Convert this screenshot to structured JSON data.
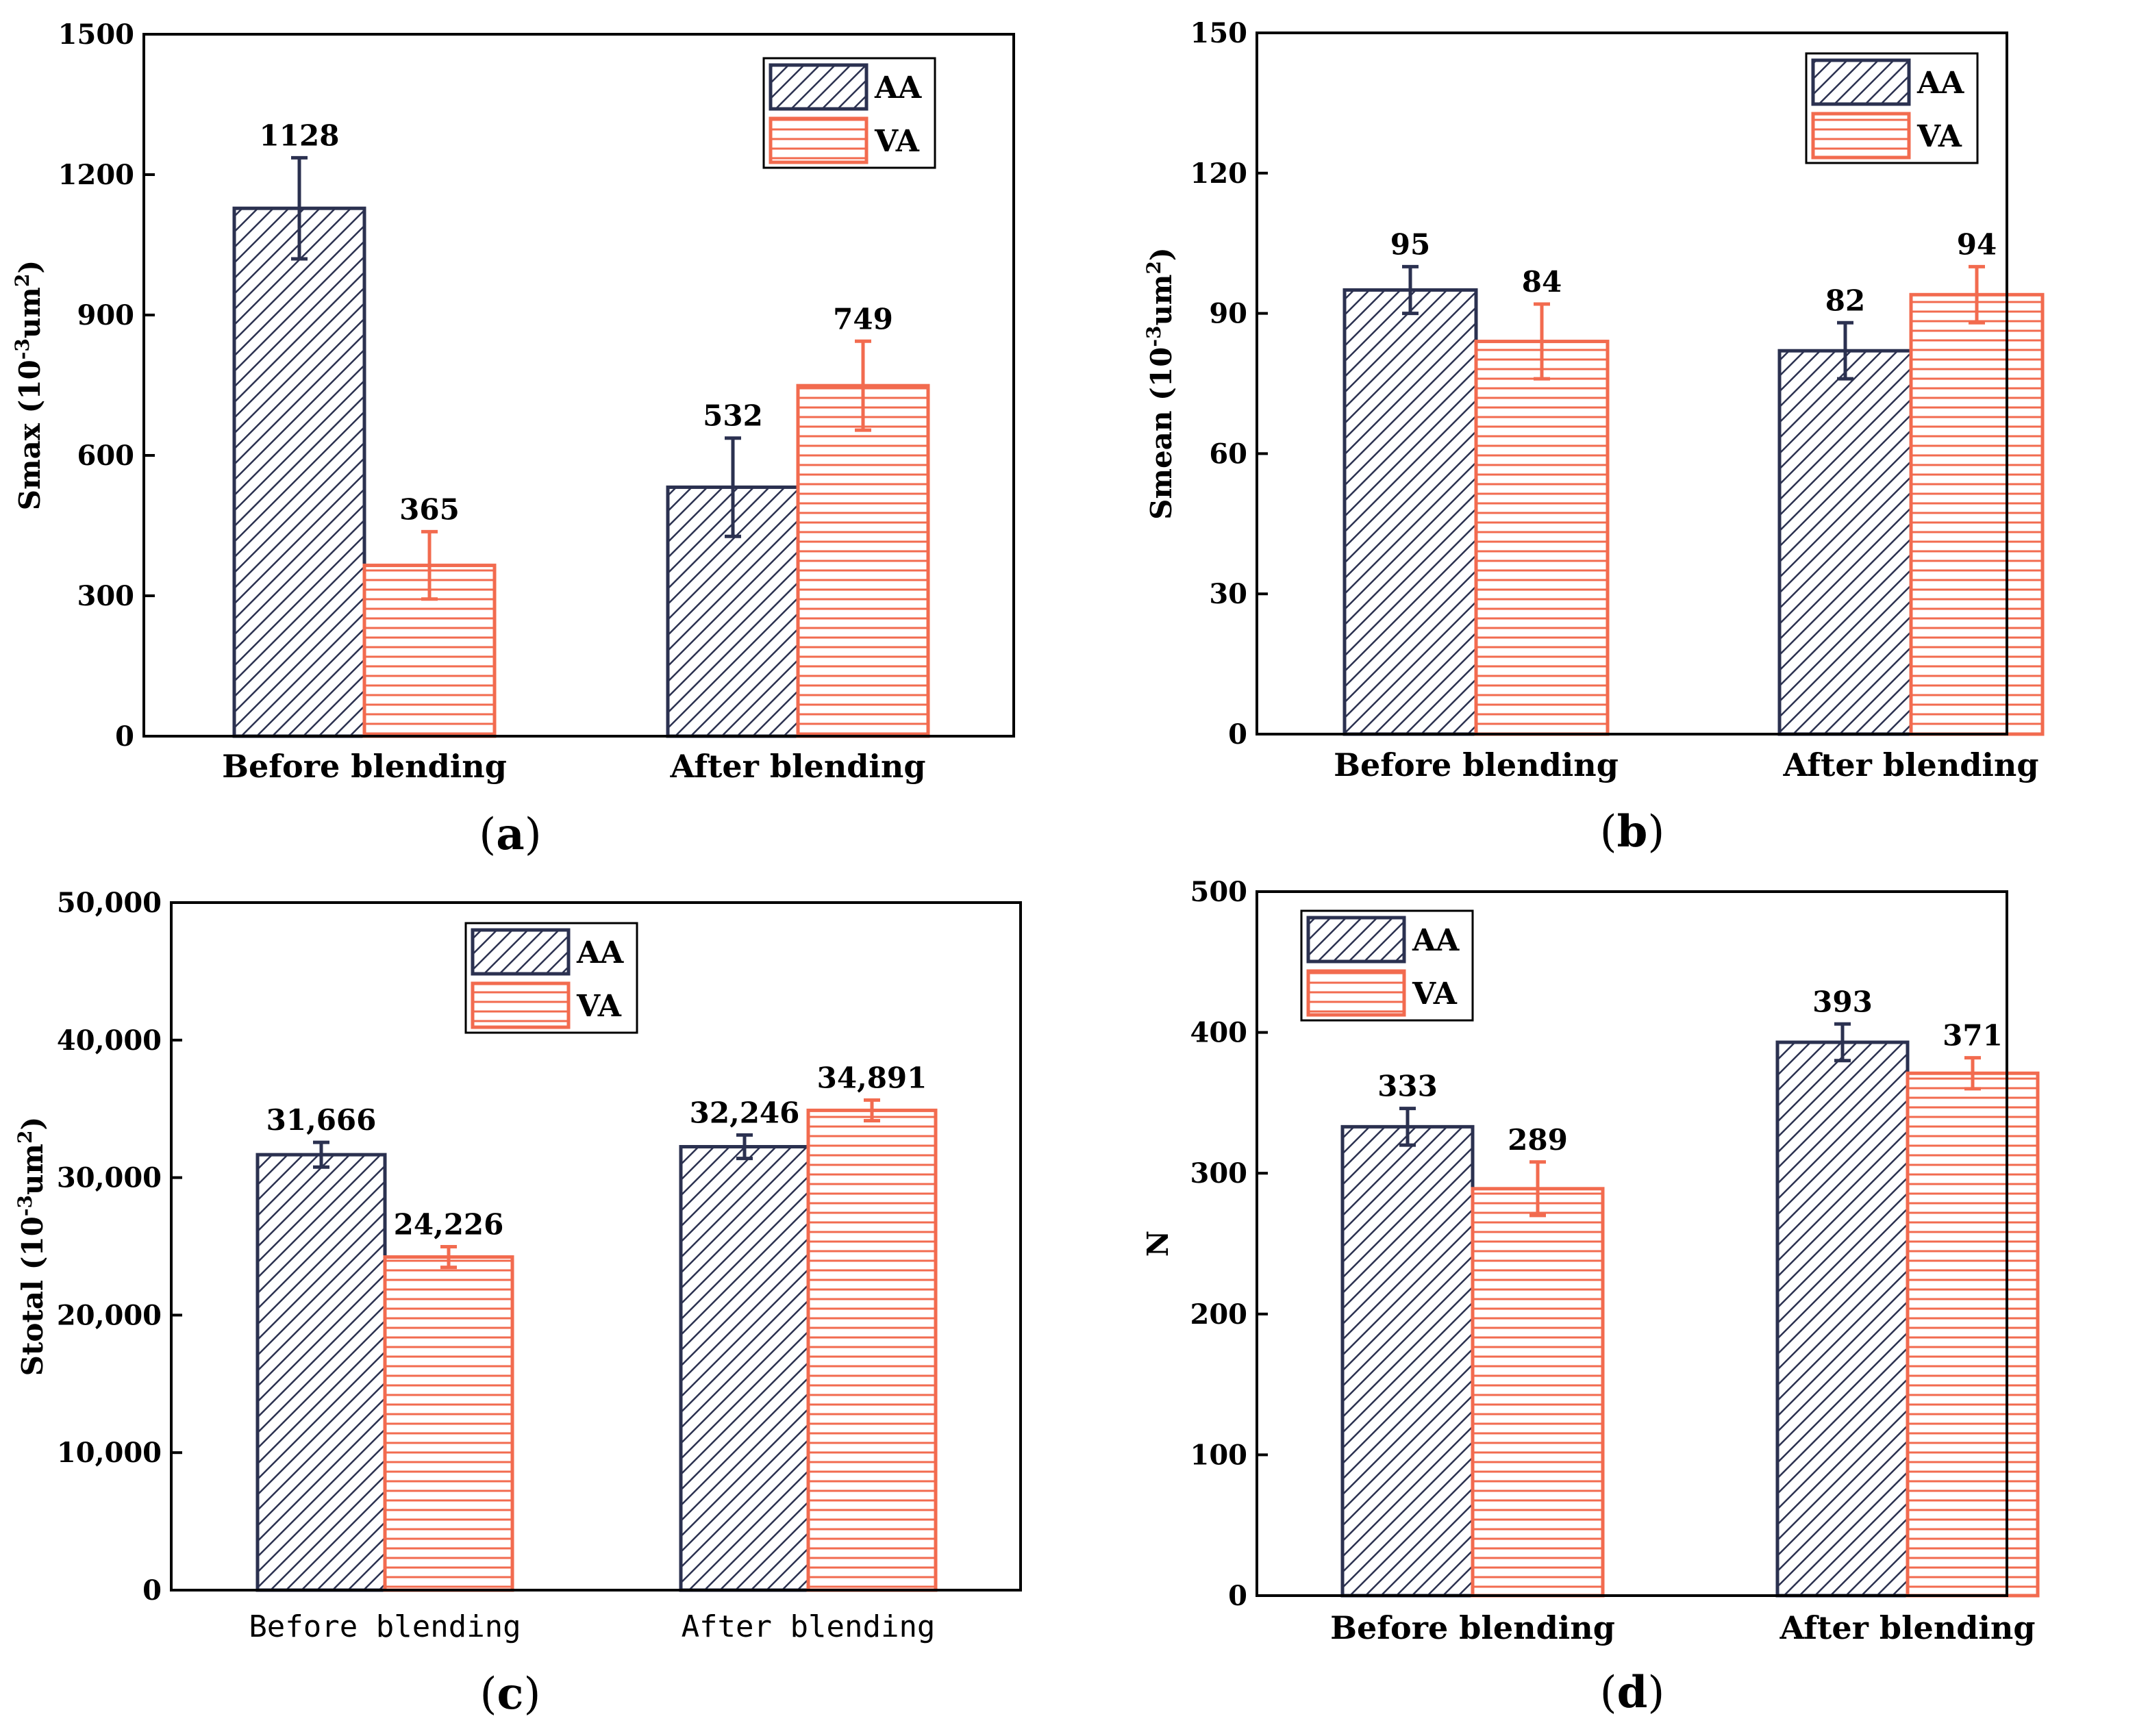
{
  "colors": {
    "AA": "#2b3150",
    "VA": "#f26b4f",
    "axis": "#000000"
  },
  "chart_data": [
    {
      "type": "bar",
      "panel_label": "a",
      "ylabel_main": "Smax (10",
      "ylabel_sup1": "-3",
      "ylabel_mid": "um",
      "ylabel_sup2": "2",
      "ylabel_end": ")",
      "ylim": [
        0,
        1500
      ],
      "yticks": [
        0,
        300,
        600,
        900,
        1200,
        1500
      ],
      "ytick_labels": [
        "0",
        "300",
        "600",
        "900",
        "1200",
        "1500"
      ],
      "categories": [
        "Before blending",
        "After blending"
      ],
      "legend_position": "top-right",
      "series": [
        {
          "name": "AA",
          "values": [
            1128,
            532
          ],
          "errors": [
            108,
            105
          ],
          "labels": [
            "1128",
            "532"
          ]
        },
        {
          "name": "VA",
          "values": [
            365,
            749
          ],
          "errors": [
            72,
            95
          ],
          "labels": [
            "365",
            "749"
          ]
        }
      ]
    },
    {
      "type": "bar",
      "panel_label": "b",
      "ylabel_main": "Smean (10",
      "ylabel_sup1": "-3",
      "ylabel_mid": "um",
      "ylabel_sup2": "2",
      "ylabel_end": ")",
      "ylim": [
        0,
        150
      ],
      "yticks": [
        0,
        30,
        60,
        90,
        120,
        150
      ],
      "ytick_labels": [
        "0",
        "30",
        "60",
        "90",
        "120",
        "150"
      ],
      "categories": [
        "Before blending",
        "After blending"
      ],
      "legend_position": "top-right",
      "series": [
        {
          "name": "AA",
          "values": [
            95,
            82
          ],
          "errors": [
            5,
            6
          ],
          "labels": [
            "95",
            "82"
          ]
        },
        {
          "name": "VA",
          "values": [
            84,
            94
          ],
          "errors": [
            8,
            6
          ],
          "labels": [
            "84",
            "94"
          ]
        }
      ]
    },
    {
      "type": "bar",
      "panel_label": "c",
      "ylabel_main": "Stotal (10",
      "ylabel_sup1": "-3",
      "ylabel_mid": "um",
      "ylabel_sup2": "2",
      "ylabel_end": ")",
      "ylim": [
        0,
        50000
      ],
      "yticks": [
        0,
        10000,
        20000,
        30000,
        40000,
        50000
      ],
      "ytick_labels": [
        "0",
        "10,000",
        "20,000",
        "30,000",
        "40,000",
        "50,000"
      ],
      "categories": [
        "Before blending",
        "After blending"
      ],
      "category_font": "mono",
      "legend_position": "top-center",
      "series": [
        {
          "name": "AA",
          "values": [
            31666,
            32246
          ],
          "errors": [
            900,
            850
          ],
          "labels": [
            "31,666",
            "32,246"
          ]
        },
        {
          "name": "VA",
          "values": [
            24226,
            34891
          ],
          "errors": [
            750,
            750
          ],
          "labels": [
            "24,226",
            "34,891"
          ]
        }
      ]
    },
    {
      "type": "bar",
      "panel_label": "d",
      "ylabel_main": "N",
      "ylabel_sup1": "",
      "ylabel_mid": "",
      "ylabel_sup2": "",
      "ylabel_end": "",
      "ylim": [
        0,
        500
      ],
      "yticks": [
        0,
        100,
        200,
        300,
        400,
        500
      ],
      "ytick_labels": [
        "0",
        "100",
        "200",
        "300",
        "400",
        "500"
      ],
      "categories": [
        "Before blending",
        "After blending"
      ],
      "legend_position": "top-left",
      "series": [
        {
          "name": "AA",
          "values": [
            333,
            393
          ],
          "errors": [
            13,
            13
          ],
          "labels": [
            "333",
            "393"
          ]
        },
        {
          "name": "VA",
          "values": [
            289,
            371
          ],
          "errors": [
            19,
            11
          ],
          "labels": [
            "289",
            "371"
          ]
        }
      ]
    }
  ]
}
